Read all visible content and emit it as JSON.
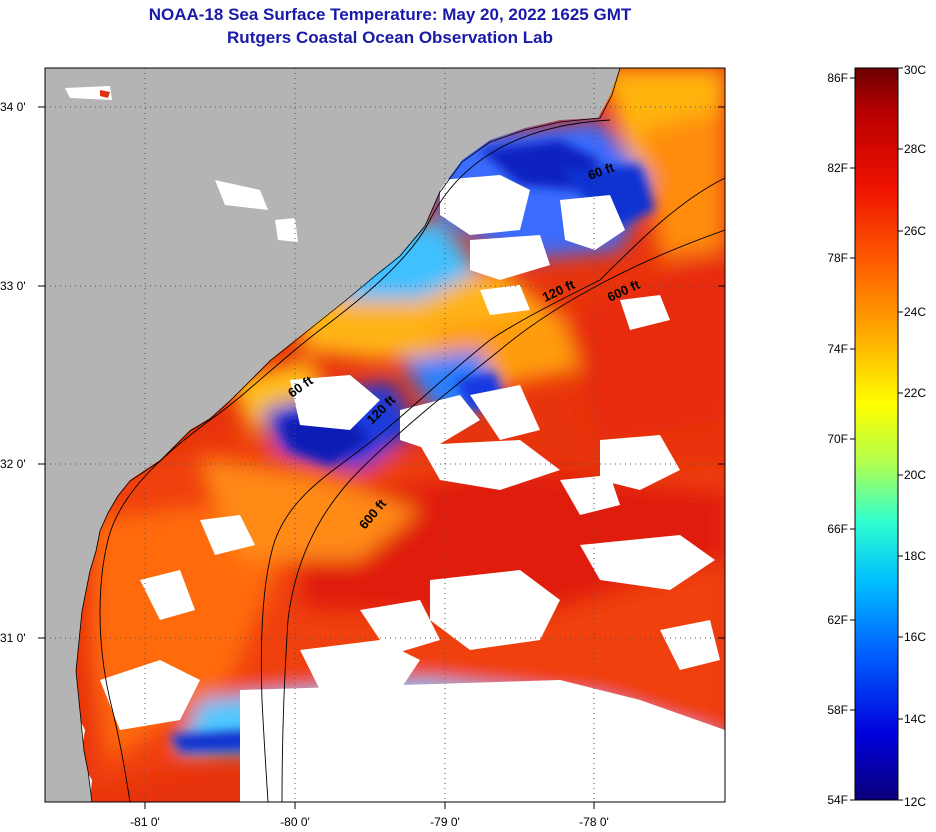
{
  "title": "NOAA-18 Sea Surface Temperature:  May 20, 2022 1625 GMT",
  "subtitle": "Rutgers Coastal Ocean Observation Lab",
  "map": {
    "lat_labels": [
      "34 0'",
      "33 0'",
      "32 0'",
      "31 0'"
    ],
    "lon_labels": [
      "-81 0'",
      "-80 0'",
      "-79 0'",
      "-78 0'"
    ],
    "isobaths": [
      {
        "label": "60 ft",
        "pos": "upper-left"
      },
      {
        "label": "120 ft",
        "pos": "upper"
      },
      {
        "label": "600 ft",
        "pos": "upper-right"
      },
      {
        "label": "60 ft",
        "pos": "mid-left"
      },
      {
        "label": "120 ft",
        "pos": "mid"
      },
      {
        "label": "600 ft",
        "pos": "lower"
      }
    ],
    "colors": {
      "land": "#b4b4b4",
      "cloud": "#ffffff"
    }
  },
  "colorbar": {
    "fahrenheit_labels": [
      "86F",
      "82F",
      "78F",
      "74F",
      "70F",
      "66F",
      "62F",
      "58F",
      "54F"
    ],
    "celsius_labels": [
      "30C",
      "28C",
      "26C",
      "24C",
      "22C",
      "20C",
      "18C",
      "16C",
      "14C",
      "12C"
    ],
    "colors": [
      "#0a007a",
      "#0000dd",
      "#0060ff",
      "#00c0ff",
      "#30ffd0",
      "#b0ff50",
      "#ffff00",
      "#ffb000",
      "#ff6000",
      "#ee1000",
      "#b80000",
      "#6a0000"
    ]
  }
}
